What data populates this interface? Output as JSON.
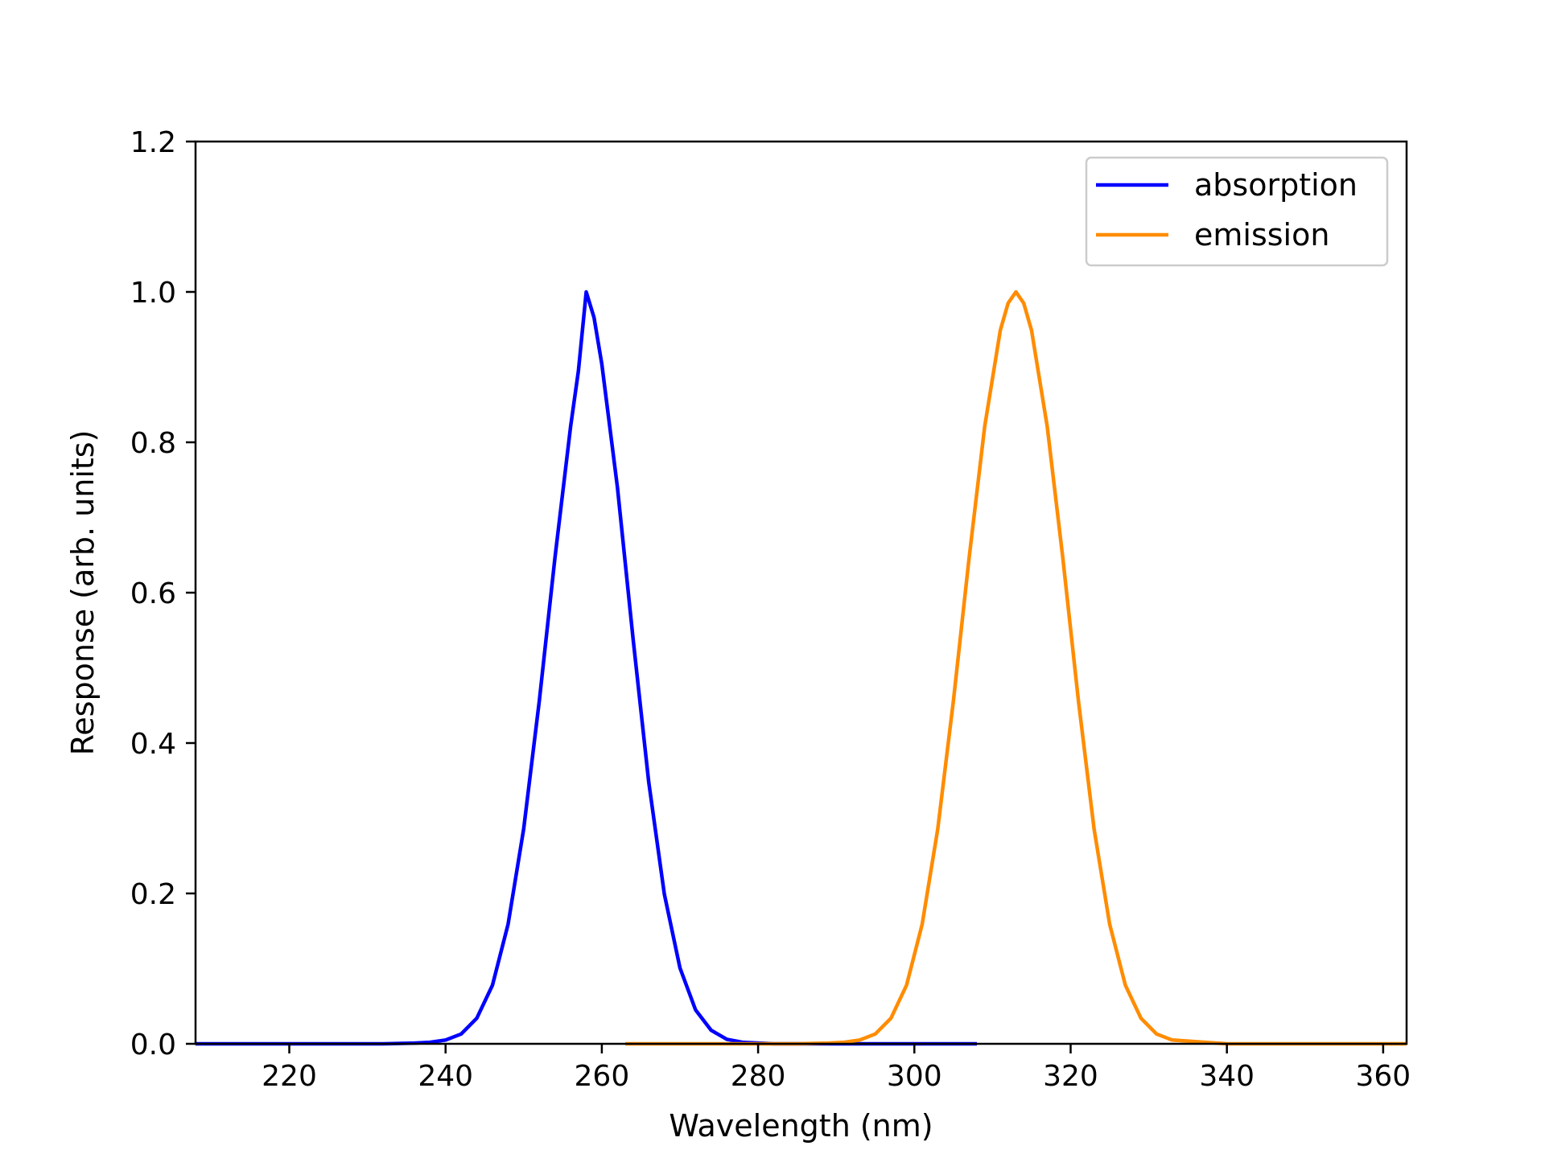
{
  "chart_data": {
    "type": "line",
    "title": "",
    "xlabel": "Wavelength (nm)",
    "ylabel": "Response (arb. units)",
    "xlim": [
      208,
      363
    ],
    "ylim": [
      0.0,
      1.2
    ],
    "xticks": [
      220,
      240,
      260,
      280,
      300,
      320,
      340,
      360
    ],
    "yticks": [
      0.0,
      0.2,
      0.4,
      0.6,
      0.8,
      1.0,
      1.2
    ],
    "xtick_labels": [
      "220",
      "240",
      "260",
      "280",
      "300",
      "320",
      "340",
      "360"
    ],
    "ytick_labels": [
      "0.0",
      "0.2",
      "0.4",
      "0.6",
      "0.8",
      "1.0",
      "1.2"
    ],
    "grid": false,
    "legend": {
      "position": "top-right"
    },
    "series": [
      {
        "name": "absorption",
        "color": "#0000ff",
        "x": [
          208,
          232,
          236,
          238,
          240,
          242,
          244,
          246,
          248,
          250,
          252,
          254,
          256,
          257,
          258,
          259,
          260,
          262,
          264,
          266,
          268,
          270,
          272,
          274,
          276,
          278,
          282,
          290,
          300,
          308
        ],
        "y": [
          0,
          0,
          0.001,
          0.002,
          0.005,
          0.013,
          0.034,
          0.078,
          0.159,
          0.286,
          0.456,
          0.646,
          0.821,
          0.895,
          1.0,
          0.966,
          0.904,
          0.74,
          0.539,
          0.348,
          0.199,
          0.101,
          0.045,
          0.018,
          0.006,
          0.002,
          0,
          0,
          0,
          0
        ]
      },
      {
        "name": "emission",
        "color": "#ff8c00",
        "x": [
          263,
          285,
          289,
          291,
          293,
          295,
          297,
          299,
          301,
          303,
          305,
          307,
          309,
          311,
          312,
          313,
          314,
          315,
          317,
          319,
          321,
          323,
          325,
          327,
          329,
          331,
          333,
          340,
          350,
          363
        ],
        "y": [
          0,
          0,
          0.001,
          0.002,
          0.005,
          0.013,
          0.034,
          0.078,
          0.159,
          0.286,
          0.456,
          0.646,
          0.821,
          0.949,
          0.985,
          1.0,
          0.985,
          0.949,
          0.821,
          0.646,
          0.456,
          0.286,
          0.159,
          0.078,
          0.034,
          0.013,
          0.005,
          0,
          0,
          0
        ]
      }
    ]
  }
}
